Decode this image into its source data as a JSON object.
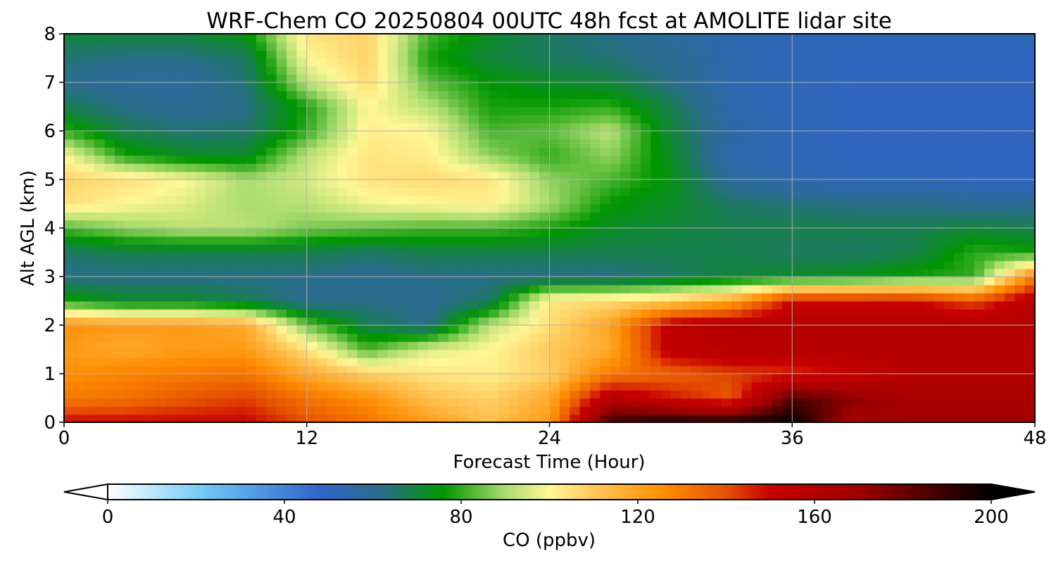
{
  "chart_data": {
    "type": "heatmap",
    "title": "WRF-Chem CO  20250804 00UTC 48h fcst at AMOLITE lidar site",
    "xlabel": "Forecast Time (Hour)",
    "ylabel": "Alt AGL (km)",
    "xlim": [
      0,
      48
    ],
    "ylim": [
      0,
      8
    ],
    "x_ticks": [
      0,
      12,
      24,
      36,
      48
    ],
    "y_ticks": [
      0,
      1,
      2,
      3,
      4,
      5,
      6,
      7,
      8
    ],
    "grid": true,
    "colorbar": {
      "label": "CO  (ppbv)",
      "orientation": "horizontal",
      "range": [
        0,
        200
      ],
      "ticks": [
        0,
        40,
        80,
        120,
        160,
        200
      ],
      "extend": "both",
      "colors": [
        {
          "v": 0,
          "c": "#ffffff"
        },
        {
          "v": 22,
          "c": "#6ec8f5"
        },
        {
          "v": 48,
          "c": "#3064c8"
        },
        {
          "v": 62,
          "c": "#2a6e8a"
        },
        {
          "v": 76,
          "c": "#009600"
        },
        {
          "v": 90,
          "c": "#aadc6e"
        },
        {
          "v": 100,
          "c": "#fff796"
        },
        {
          "v": 110,
          "c": "#ffc85a"
        },
        {
          "v": 126,
          "c": "#ff8c00"
        },
        {
          "v": 140,
          "c": "#e65000"
        },
        {
          "v": 150,
          "c": "#c80000"
        },
        {
          "v": 170,
          "c": "#a00000"
        },
        {
          "v": 200,
          "c": "#000000"
        }
      ]
    },
    "x": [
      0,
      3,
      6,
      9,
      12,
      15,
      18,
      21,
      24,
      27,
      30,
      33,
      36,
      39,
      42,
      45,
      48
    ],
    "y": [
      0,
      0.5,
      1,
      1.5,
      2,
      2.5,
      3,
      3.5,
      4,
      4.5,
      5,
      5.5,
      6,
      6.5,
      7,
      7.5,
      8
    ],
    "z": [
      [
        150,
        150,
        150,
        150,
        140,
        132,
        122,
        112,
        122,
        190,
        195,
        195,
        200,
        165,
        170,
        170,
        170
      ],
      [
        130,
        132,
        138,
        142,
        132,
        125,
        112,
        108,
        118,
        160,
        148,
        138,
        185,
        175,
        165,
        165,
        165
      ],
      [
        125,
        128,
        130,
        132,
        118,
        108,
        104,
        102,
        108,
        130,
        136,
        142,
        145,
        150,
        160,
        160,
        160
      ],
      [
        122,
        118,
        122,
        122,
        105,
        82,
        96,
        100,
        110,
        118,
        155,
        158,
        158,
        160,
        160,
        160,
        160
      ],
      [
        125,
        122,
        122,
        118,
        85,
        68,
        62,
        92,
        105,
        120,
        155,
        160,
        160,
        160,
        160,
        160,
        160
      ],
      [
        78,
        72,
        72,
        68,
        60,
        62,
        60,
        66,
        104,
        106,
        110,
        120,
        150,
        150,
        150,
        140,
        160
      ],
      [
        62,
        62,
        62,
        62,
        62,
        60,
        62,
        62,
        62,
        62,
        66,
        70,
        72,
        74,
        78,
        80,
        130
      ],
      [
        65,
        68,
        68,
        68,
        68,
        65,
        68,
        68,
        68,
        68,
        68,
        68,
        66,
        66,
        68,
        80,
        78
      ],
      [
        82,
        88,
        92,
        92,
        86,
        84,
        82,
        82,
        78,
        72,
        70,
        68,
        68,
        68,
        68,
        70,
        68
      ],
      [
        105,
        100,
        96,
        90,
        92,
        98,
        100,
        102,
        90,
        76,
        72,
        66,
        64,
        62,
        62,
        60,
        60
      ],
      [
        108,
        105,
        100,
        90,
        95,
        104,
        106,
        104,
        88,
        82,
        74,
        58,
        54,
        52,
        52,
        50,
        50
      ],
      [
        100,
        78,
        72,
        72,
        92,
        104,
        102,
        88,
        80,
        88,
        72,
        54,
        52,
        50,
        50,
        50,
        50
      ],
      [
        80,
        68,
        64,
        65,
        80,
        102,
        100,
        82,
        84,
        92,
        70,
        56,
        52,
        50,
        50,
        50,
        50
      ],
      [
        68,
        62,
        60,
        62,
        78,
        100,
        92,
        78,
        78,
        80,
        68,
        54,
        52,
        50,
        50,
        50,
        50
      ],
      [
        62,
        58,
        58,
        64,
        92,
        106,
        84,
        76,
        72,
        70,
        62,
        54,
        52,
        50,
        50,
        50,
        50
      ],
      [
        64,
        62,
        62,
        66,
        100,
        108,
        78,
        70,
        66,
        64,
        60,
        54,
        52,
        50,
        50,
        50,
        50
      ],
      [
        70,
        70,
        70,
        75,
        104,
        108,
        82,
        72,
        66,
        62,
        58,
        54,
        52,
        52,
        52,
        52,
        52
      ]
    ]
  }
}
